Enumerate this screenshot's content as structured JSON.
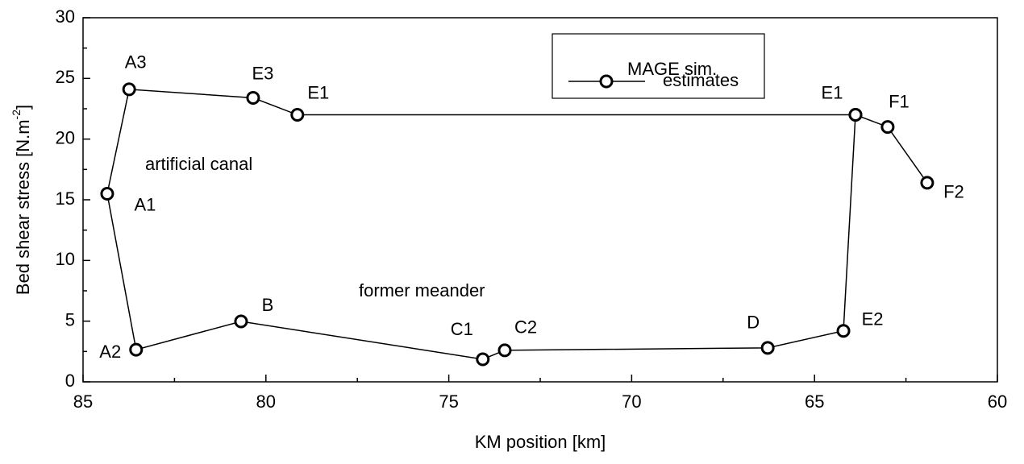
{
  "chart_data": {
    "type": "line",
    "xlabel": "KM position [km]",
    "ylabel": [
      "Bed shear stress [N.m",
      "-2",
      "]"
    ],
    "legend_header": "MAGE sim.",
    "annotations": [
      "artificial canal",
      "former meander"
    ],
    "xlim": [
      85,
      60
    ],
    "xticks": [
      85,
      80,
      75,
      70,
      65,
      60
    ],
    "ylim": [
      0,
      30
    ],
    "yticks": [
      0,
      5,
      10,
      15,
      20,
      25,
      30
    ],
    "series": [
      {
        "name": "estimates",
        "color": "#000000",
        "x": [
          61.92,
          63.0,
          63.88,
          79.14,
          80.35,
          83.74,
          84.34,
          83.55,
          80.68,
          74.07,
          73.47,
          66.28,
          64.21,
          63.88
        ],
        "values": [
          16.4,
          21.0,
          22.0,
          22.0,
          23.4,
          24.1,
          15.5,
          2.65,
          4.98,
          1.86,
          2.6,
          2.8,
          4.2,
          22.0
        ],
        "point_labels": [
          "F2",
          "F1",
          "E1",
          "E1",
          "E3",
          "A3",
          "A1",
          "A2",
          "B",
          "C1",
          "C2",
          "D",
          "E2",
          null
        ]
      }
    ]
  }
}
